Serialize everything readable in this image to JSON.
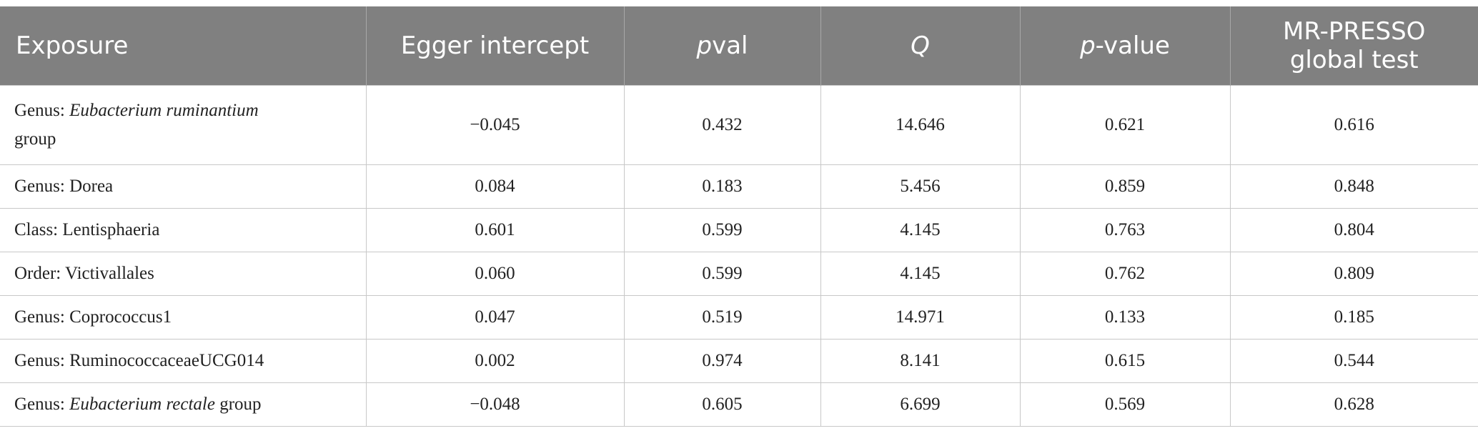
{
  "table": {
    "header": [
      "Exposure",
      "Egger intercept",
      [
        {
          "text": "p",
          "italic": true
        },
        {
          "text": "val"
        }
      ],
      [
        {
          "text": "Q",
          "italic": true
        }
      ],
      [
        {
          "text": "p",
          "italic": true
        },
        {
          "text": "-value"
        }
      ],
      "MR-PRESSO global test"
    ],
    "rows": [
      [
        [
          {
            "text": "Genus: "
          },
          {
            "text": "Eubacterium ruminantium",
            "italic": true
          },
          {
            "text": " group"
          }
        ],
        "−0.045",
        "0.432",
        "14.646",
        "0.621",
        "0.616"
      ],
      [
        "Genus: Dorea",
        "0.084",
        "0.183",
        "5.456",
        "0.859",
        "0.848"
      ],
      [
        "Class: Lentisphaeria",
        "0.601",
        "0.599",
        "4.145",
        "0.763",
        "0.804"
      ],
      [
        "Order: Victivallales",
        "0.060",
        "0.599",
        "4.145",
        "0.762",
        "0.809"
      ],
      [
        "Genus: Coprococcus1",
        "0.047",
        "0.519",
        "14.971",
        "0.133",
        "0.185"
      ],
      [
        "Genus: RuminococcaceaeUCG014",
        "0.002",
        "0.974",
        "8.141",
        "0.615",
        "0.544"
      ],
      [
        [
          {
            "text": "Genus: "
          },
          {
            "text": "Eubacterium rectale",
            "italic": true
          },
          {
            "text": " group"
          }
        ],
        "−0.048",
        "0.605",
        "6.699",
        "0.569",
        "0.628"
      ]
    ]
  }
}
